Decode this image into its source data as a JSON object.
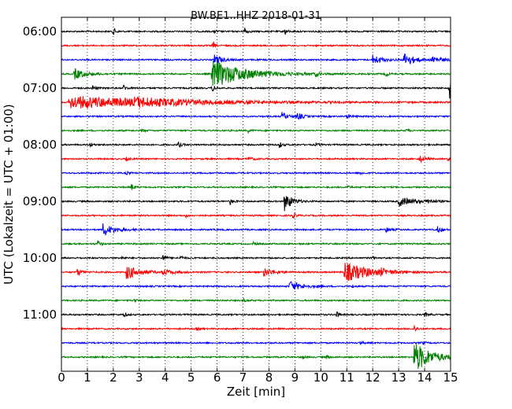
{
  "chart_data": {
    "type": "line",
    "title": "BW.BE1..HHZ 2018-01-31",
    "xlabel": "Zeit  [min]",
    "ylabel": "UTC (Lokalzeit = UTC + 01:00)",
    "xlim": [
      0,
      15
    ],
    "x_ticks": [
      "0",
      "1",
      "2",
      "3",
      "4",
      "5",
      "6",
      "7",
      "8",
      "9",
      "10",
      "11",
      "12",
      "13",
      "14",
      "15"
    ],
    "y_ticks": [
      {
        "label": "06:00",
        "hour": 6
      },
      {
        "label": "07:00",
        "hour": 7
      },
      {
        "label": "08:00",
        "hour": 8
      },
      {
        "label": "09:00",
        "hour": 9
      },
      {
        "label": "10:00",
        "hour": 10
      },
      {
        "label": "11:00",
        "hour": 11
      }
    ],
    "grid": "vertical dotted",
    "trace_colors": [
      "#000000",
      "#ff0000",
      "#0000ff",
      "#008000"
    ],
    "series": [
      {
        "start": "06:00",
        "color": "#000000",
        "events": [
          {
            "t": 2.0,
            "a": 6,
            "d": 0.08
          },
          {
            "t": 7.05,
            "a": 7,
            "d": 0.08
          },
          {
            "t": 8.6,
            "a": 5,
            "d": 0.08
          },
          {
            "t": 5.9,
            "a": 2,
            "d": 0.1
          }
        ]
      },
      {
        "start": "06:15",
        "color": "#ff0000",
        "events": [
          {
            "t": 5.85,
            "a": 6,
            "d": 0.06
          }
        ]
      },
      {
        "start": "06:30",
        "color": "#0000ff",
        "events": [
          {
            "t": 5.9,
            "a": 7,
            "d": 0.25
          },
          {
            "t": 12.0,
            "a": 6,
            "d": 0.35
          },
          {
            "t": 13.2,
            "a": 9,
            "d": 0.35
          },
          {
            "t": 14.3,
            "a": 5,
            "d": 0.3
          }
        ]
      },
      {
        "start": "06:45",
        "color": "#008000",
        "events": [
          {
            "t": 0.5,
            "a": 7,
            "d": 0.4
          },
          {
            "t": 5.8,
            "a": 18,
            "d": 1.2
          },
          {
            "t": 9.8,
            "a": 3,
            "d": 0.1
          },
          {
            "t": 12.5,
            "a": 3,
            "d": 0.1
          }
        ]
      },
      {
        "start": "07:00",
        "color": "#000000",
        "events": [
          {
            "t": 1.2,
            "a": 3,
            "d": 0.1
          },
          {
            "t": 2.4,
            "a": 4,
            "d": 0.1
          },
          {
            "t": 5.8,
            "a": 5,
            "d": 0.1
          },
          {
            "t": 14.95,
            "a": 18,
            "d": 0.05
          }
        ]
      },
      {
        "start": "07:15",
        "color": "#ff0000",
        "events": [
          {
            "t": 0.3,
            "a": 8,
            "d": 3.5
          },
          {
            "t": 2.8,
            "a": 3,
            "d": 1.8
          },
          {
            "t": 7.2,
            "a": 2,
            "d": 0.1
          }
        ]
      },
      {
        "start": "07:30",
        "color": "#0000ff",
        "events": [
          {
            "t": 8.5,
            "a": 5,
            "d": 0.2
          },
          {
            "t": 9.1,
            "a": 4,
            "d": 0.2
          },
          {
            "t": 11.0,
            "a": 2,
            "d": 0.2
          }
        ]
      },
      {
        "start": "07:45",
        "color": "#008000",
        "events": [
          {
            "t": 3.1,
            "a": 2,
            "d": 0.1
          },
          {
            "t": 7.2,
            "a": 2,
            "d": 0.1
          },
          {
            "t": 13.3,
            "a": 2,
            "d": 0.1
          }
        ]
      },
      {
        "start": "08:00",
        "color": "#000000",
        "events": [
          {
            "t": 1.1,
            "a": 3,
            "d": 0.1
          },
          {
            "t": 4.5,
            "a": 4,
            "d": 0.1
          },
          {
            "t": 8.4,
            "a": 4,
            "d": 0.1
          },
          {
            "t": 9.8,
            "a": 2,
            "d": 0.1
          }
        ]
      },
      {
        "start": "08:15",
        "color": "#ff0000",
        "events": [
          {
            "t": 2.5,
            "a": 2,
            "d": 0.1
          },
          {
            "t": 7.2,
            "a": 2,
            "d": 0.2
          },
          {
            "t": 13.8,
            "a": 5,
            "d": 0.15
          },
          {
            "t": 14.9,
            "a": 3,
            "d": 0.1
          }
        ]
      },
      {
        "start": "08:30",
        "color": "#0000ff",
        "events": [
          {
            "t": 2.5,
            "a": 2,
            "d": 0.1
          },
          {
            "t": 11.5,
            "a": 2,
            "d": 0.1
          }
        ]
      },
      {
        "start": "08:45",
        "color": "#008000",
        "events": [
          {
            "t": 2.7,
            "a": 4,
            "d": 0.1
          },
          {
            "t": 11.0,
            "a": 2,
            "d": 0.1
          }
        ]
      },
      {
        "start": "09:00",
        "color": "#000000",
        "events": [
          {
            "t": 6.5,
            "a": 4,
            "d": 0.1
          },
          {
            "t": 8.6,
            "a": 13,
            "d": 0.25
          },
          {
            "t": 13.0,
            "a": 6,
            "d": 0.5
          },
          {
            "t": 14.1,
            "a": 3,
            "d": 0.2
          }
        ]
      },
      {
        "start": "09:15",
        "color": "#ff0000",
        "events": [
          {
            "t": 8.9,
            "a": 4,
            "d": 0.1
          },
          {
            "t": 4.8,
            "a": 2,
            "d": 0.1
          }
        ]
      },
      {
        "start": "09:30",
        "color": "#0000ff",
        "events": [
          {
            "t": 1.6,
            "a": 8,
            "d": 0.4
          },
          {
            "t": 12.5,
            "a": 3,
            "d": 0.2
          },
          {
            "t": 14.5,
            "a": 4,
            "d": 0.15
          }
        ]
      },
      {
        "start": "09:45",
        "color": "#008000",
        "events": [
          {
            "t": 1.4,
            "a": 4,
            "d": 0.1
          },
          {
            "t": 7.4,
            "a": 2,
            "d": 0.1
          }
        ]
      },
      {
        "start": "10:00",
        "color": "#000000",
        "events": [
          {
            "t": 3.9,
            "a": 5,
            "d": 0.1
          },
          {
            "t": 4.6,
            "a": 3,
            "d": 0.1
          },
          {
            "t": 2.3,
            "a": 2,
            "d": 0.1
          },
          {
            "t": 12.0,
            "a": 2,
            "d": 0.1
          }
        ]
      },
      {
        "start": "10:15",
        "color": "#ff0000",
        "events": [
          {
            "t": 0.6,
            "a": 4,
            "d": 0.2
          },
          {
            "t": 2.5,
            "a": 9,
            "d": 0.5
          },
          {
            "t": 3.9,
            "a": 3,
            "d": 0.4
          },
          {
            "t": 7.8,
            "a": 5,
            "d": 0.4
          },
          {
            "t": 10.9,
            "a": 13,
            "d": 0.9
          },
          {
            "t": 12.3,
            "a": 3,
            "d": 0.2
          }
        ]
      },
      {
        "start": "10:30",
        "color": "#0000ff",
        "events": [
          {
            "t": 8.8,
            "a": 7,
            "d": 0.4
          },
          {
            "t": 11.2,
            "a": 2,
            "d": 0.1
          }
        ]
      },
      {
        "start": "10:45",
        "color": "#008000",
        "events": [
          {
            "t": 2.8,
            "a": 2,
            "d": 0.1
          },
          {
            "t": 7.0,
            "a": 2,
            "d": 0.1
          }
        ]
      },
      {
        "start": "11:00",
        "color": "#000000",
        "events": [
          {
            "t": 2.4,
            "a": 3,
            "d": 0.1
          },
          {
            "t": 10.6,
            "a": 4,
            "d": 0.1
          },
          {
            "t": 14.0,
            "a": 3,
            "d": 0.1
          }
        ]
      },
      {
        "start": "11:15",
        "color": "#ff0000",
        "events": [
          {
            "t": 13.6,
            "a": 4,
            "d": 0.1
          },
          {
            "t": 5.2,
            "a": 2,
            "d": 0.1
          }
        ]
      },
      {
        "start": "11:30",
        "color": "#0000ff",
        "events": [
          {
            "t": 11.5,
            "a": 2,
            "d": 0.1
          },
          {
            "t": 13.9,
            "a": 2,
            "d": 0.1
          }
        ]
      },
      {
        "start": "11:45",
        "color": "#008000",
        "events": [
          {
            "t": 13.6,
            "a": 20,
            "d": 0.6
          },
          {
            "t": 10.2,
            "a": 3,
            "d": 0.1
          },
          {
            "t": 9.3,
            "a": 2,
            "d": 0.1
          }
        ]
      }
    ]
  }
}
